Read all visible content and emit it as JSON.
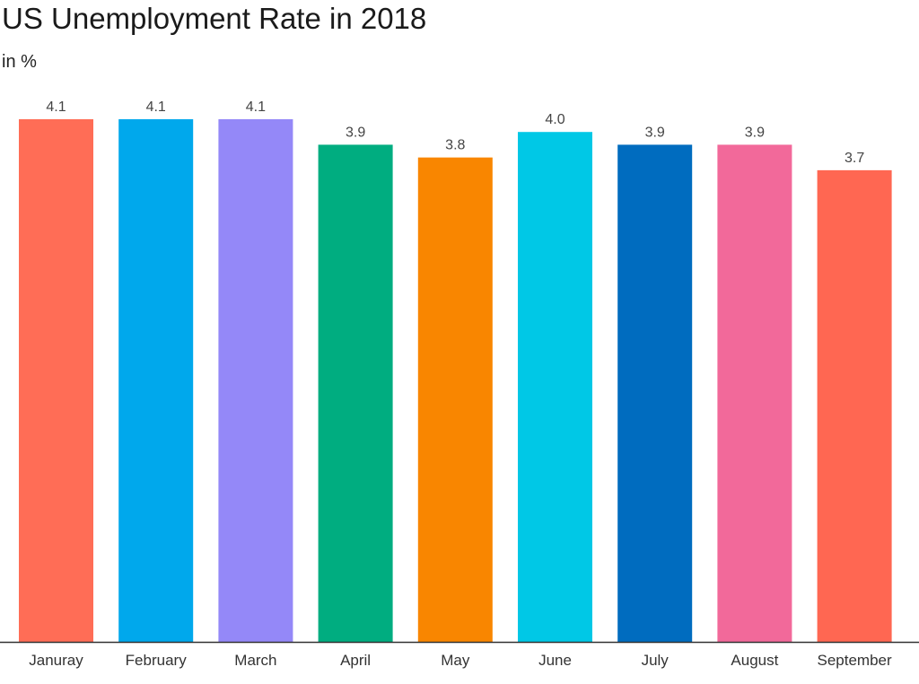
{
  "chart_data": {
    "type": "bar",
    "title": "US Unemployment Rate in 2018",
    "subtitle": "in %",
    "xlabel": "",
    "ylabel": "",
    "categories": [
      "Januray",
      "February",
      "March",
      "April",
      "May",
      "June",
      "July",
      "August",
      "September"
    ],
    "values": [
      4.1,
      4.1,
      4.1,
      3.9,
      3.8,
      4.0,
      3.9,
      3.9,
      3.7
    ],
    "value_labels": [
      "4.1",
      "4.1",
      "4.1",
      "3.9",
      "3.8",
      "4.0",
      "3.9",
      "3.9",
      "3.7"
    ],
    "colors": [
      "#ff6d56",
      "#00a8ec",
      "#9488f8",
      "#00ad80",
      "#f98600",
      "#00c8e6",
      "#006cbf",
      "#f2699a",
      "#ff6752"
    ],
    "ylim": [
      0,
      4.1
    ],
    "grid": false,
    "legend": "none"
  }
}
